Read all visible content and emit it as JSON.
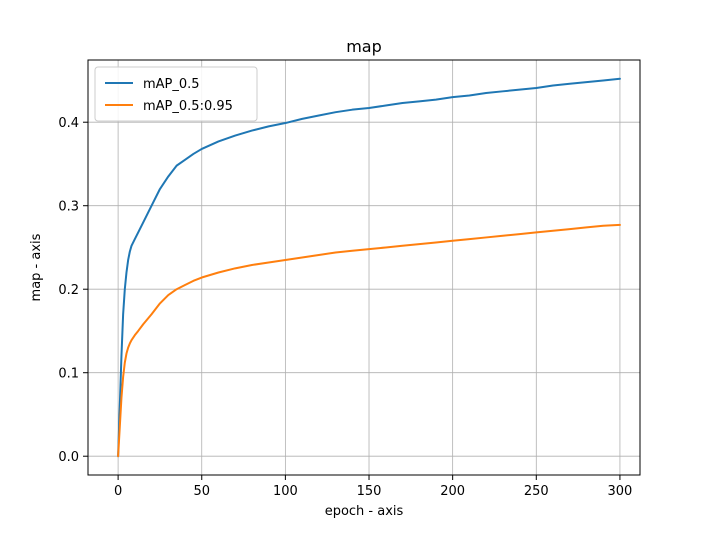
{
  "chart_data": {
    "type": "line",
    "title": "map",
    "xlabel": "epoch - axis",
    "ylabel": "map - axis",
    "xlim": [
      -18,
      312
    ],
    "ylim": [
      -0.0225,
      0.4745
    ],
    "xticks": [
      0,
      50,
      100,
      150,
      200,
      250,
      300
    ],
    "xtick_labels": [
      "0",
      "50",
      "100",
      "150",
      "200",
      "250",
      "300"
    ],
    "yticks": [
      0.0,
      0.1,
      0.2,
      0.3,
      0.4
    ],
    "ytick_labels": [
      "0.0",
      "0.1",
      "0.2",
      "0.3",
      "0.4"
    ],
    "grid": true,
    "legend_position": "top-left",
    "x": [
      0,
      1,
      2,
      3,
      4,
      5,
      6,
      7,
      8,
      10,
      12,
      15,
      20,
      25,
      30,
      35,
      40,
      45,
      50,
      60,
      70,
      80,
      90,
      100,
      110,
      120,
      130,
      140,
      150,
      160,
      170,
      180,
      190,
      200,
      210,
      220,
      230,
      240,
      250,
      260,
      270,
      280,
      290,
      300
    ],
    "series": [
      {
        "name": "mAP_0.5",
        "color": "#1f77b4",
        "values": [
          0.0,
          0.06,
          0.12,
          0.17,
          0.2,
          0.22,
          0.235,
          0.245,
          0.252,
          0.26,
          0.268,
          0.28,
          0.3,
          0.32,
          0.335,
          0.348,
          0.355,
          0.362,
          0.368,
          0.377,
          0.384,
          0.39,
          0.395,
          0.399,
          0.404,
          0.408,
          0.412,
          0.415,
          0.417,
          0.42,
          0.423,
          0.425,
          0.427,
          0.43,
          0.432,
          0.435,
          0.437,
          0.439,
          0.441,
          0.444,
          0.446,
          0.448,
          0.45,
          0.452
        ]
      },
      {
        "name": "mAP_0.5:0.95",
        "color": "#ff7f0e",
        "values": [
          0.0,
          0.035,
          0.07,
          0.095,
          0.112,
          0.123,
          0.13,
          0.135,
          0.139,
          0.145,
          0.15,
          0.158,
          0.17,
          0.183,
          0.193,
          0.2,
          0.205,
          0.21,
          0.214,
          0.22,
          0.225,
          0.229,
          0.232,
          0.235,
          0.238,
          0.241,
          0.244,
          0.246,
          0.248,
          0.25,
          0.252,
          0.254,
          0.256,
          0.258,
          0.26,
          0.262,
          0.264,
          0.266,
          0.268,
          0.27,
          0.272,
          0.274,
          0.276,
          0.277
        ]
      }
    ]
  }
}
